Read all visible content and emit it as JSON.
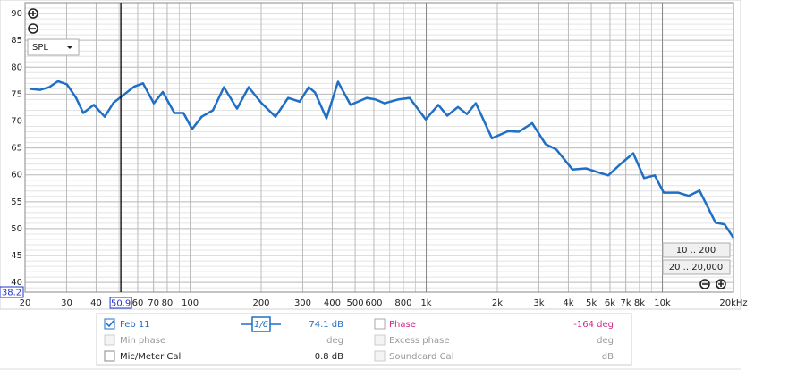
{
  "chart_data": {
    "type": "line",
    "xscale": "log",
    "xlim": [
      20,
      20000
    ],
    "ylim": [
      38.2,
      92
    ],
    "xticks": [
      20,
      30,
      40,
      60,
      70,
      80,
      100,
      200,
      300,
      400,
      500,
      600,
      800,
      {
        "value": 1000,
        "label": "1k"
      },
      {
        "value": 2000,
        "label": "2k"
      },
      {
        "value": 3000,
        "label": "3k"
      },
      {
        "value": 4000,
        "label": "4k"
      },
      {
        "value": 5000,
        "label": "5k"
      },
      {
        "value": 6000,
        "label": "6k"
      },
      {
        "value": 7000,
        "label": "7k"
      },
      {
        "value": 8000,
        "label": "8k"
      },
      {
        "value": 10000,
        "label": "10k"
      },
      {
        "value": 20000,
        "label": "20kHz"
      }
    ],
    "yticks": [
      40,
      45,
      50,
      55,
      60,
      65,
      70,
      75,
      80,
      85,
      90
    ],
    "grid": true,
    "minor_grid": true,
    "x": [
      20.9,
      23.2,
      25.3,
      27.6,
      30.1,
      32.9,
      35.3,
      39.1,
      43.5,
      47.4,
      53.1,
      58.0,
      63.2,
      70.2,
      76.6,
      85.8,
      93.7,
      102,
      112,
      125,
      139,
      158,
      177,
      200,
      230,
      260,
      291,
      318,
      338,
      378,
      423,
      478,
      560,
      611,
      666,
      759,
      851,
      995,
      1125,
      1227,
      1363,
      1487,
      1622,
      1898,
      2220,
      2466,
      2810,
      3203,
      3557,
      4162,
      4743,
      5312,
      5898,
      6722,
      7532,
      8363,
      9283,
      10126,
      11648,
      12933,
      14362,
      16797,
      18333,
      20000
    ],
    "series": [
      {
        "name": "Feb 11",
        "color": "#1f6fc5",
        "values": [
          76.0,
          75.8,
          76.3,
          77.4,
          76.8,
          74.3,
          71.5,
          73.0,
          70.8,
          73.4,
          75.1,
          76.4,
          77.0,
          73.3,
          75.4,
          71.5,
          71.5,
          68.5,
          70.8,
          72.0,
          76.3,
          72.3,
          76.3,
          73.4,
          70.8,
          74.3,
          73.6,
          76.3,
          75.3,
          70.5,
          77.3,
          73.0,
          74.3,
          74.0,
          73.3,
          74.0,
          74.3,
          70.3,
          73.0,
          71.0,
          72.6,
          71.3,
          73.3,
          66.8,
          68.1,
          68.0,
          69.6,
          65.7,
          64.7,
          61.0,
          61.2,
          60.5,
          59.9,
          62.2,
          64.0,
          59.4,
          59.9,
          56.7,
          56.7,
          56.1,
          57.1,
          51.1,
          50.8,
          48.3
        ]
      }
    ],
    "cursor": {
      "x": 50.9,
      "y": 38.2
    }
  },
  "controls": {
    "dropdown": "SPL",
    "range_buttons": [
      "10 .. 200",
      "20 .. 20,000"
    ]
  },
  "legend_panel": {
    "smoothing": "1/6",
    "rows": [
      {
        "value": "74.1 dB",
        "option": "Phase",
        "option_value": "-164 deg"
      },
      {
        "label": "Min phase",
        "value": "deg",
        "option": "Excess phase",
        "option_value": "deg"
      },
      {
        "label": "Mic/Meter Cal",
        "value": "0.8 dB",
        "option": "Soundcard Cal",
        "option_value": "dB"
      }
    ]
  }
}
